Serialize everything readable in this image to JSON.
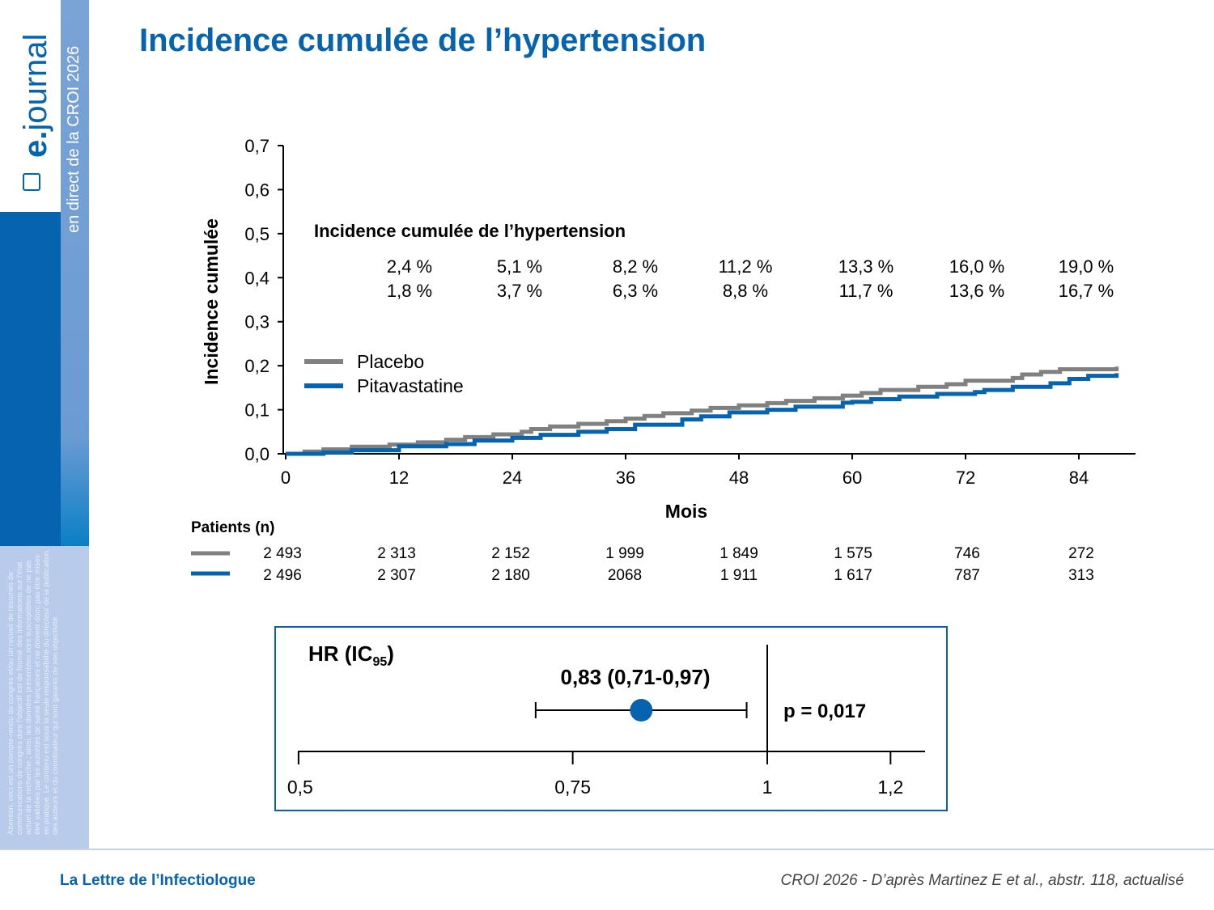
{
  "sidebar": {
    "logo_prefix": "e.",
    "logo_suffix": "journal",
    "event": "en direct de la CROI 2026",
    "disclaimer": "Attention, ceci est un compte-rendu de congrès et/ou un recueil de résumés de communications de congrès dont l'objectif est de fournir des informations sur l'état actuel de la recherche ; ainsi, les données présentées sont susceptibles de ne pas être validées par les autorités de santé françaises et ne doivent donc pas être mises en pratique. Le contenu est sous la seule responsabilité du directeur de la publication, des auteurs et du coordinateur qui sont garants de son objectivité."
  },
  "title": "Incidence cumulée de l’hypertension",
  "footer": {
    "left": "La Lettre de l’Infectiologue",
    "right": "CROI 2026 - D’après Martinez E et al., abstr. 118, actualisé"
  },
  "colors": {
    "placebo": "#808080",
    "pitavastatine": "#0563b0"
  },
  "chart_data": [
    {
      "type": "line",
      "step": true,
      "title": "Incidence cumulée de l’hypertension",
      "xlabel": "Mois",
      "ylabel": "Incidence cumulée",
      "xlim": [
        0,
        88
      ],
      "ylim": [
        0,
        0.7
      ],
      "xticks": [
        "0",
        "12",
        "24",
        "36",
        "48",
        "60",
        "72",
        "84"
      ],
      "xtick_values": [
        0,
        12,
        24,
        36,
        48,
        60,
        72,
        84
      ],
      "yticks": [
        "0,0",
        "0,1",
        "0,2",
        "0,3",
        "0,4",
        "0,5",
        "0,6",
        "0,7"
      ],
      "ytick_values": [
        0,
        0.1,
        0.2,
        0.3,
        0.4,
        0.5,
        0.6,
        0.7
      ],
      "legend_position": "middle-left",
      "series": [
        {
          "name": "Placebo",
          "color": "#808080",
          "points": [
            [
              0,
              0
            ],
            [
              2,
              0.005
            ],
            [
              4,
              0.01
            ],
            [
              7,
              0.016
            ],
            [
              11,
              0.021
            ],
            [
              14,
              0.026
            ],
            [
              17,
              0.032
            ],
            [
              19,
              0.038
            ],
            [
              22,
              0.044
            ],
            [
              25,
              0.05
            ],
            [
              26,
              0.056
            ],
            [
              28,
              0.062
            ],
            [
              31,
              0.068
            ],
            [
              34,
              0.074
            ],
            [
              36,
              0.08
            ],
            [
              38,
              0.086
            ],
            [
              40,
              0.092
            ],
            [
              43,
              0.098
            ],
            [
              45,
              0.104
            ],
            [
              48,
              0.11
            ],
            [
              51,
              0.115
            ],
            [
              53,
              0.12
            ],
            [
              56,
              0.126
            ],
            [
              59,
              0.132
            ],
            [
              61,
              0.138
            ],
            [
              63,
              0.145
            ],
            [
              67,
              0.152
            ],
            [
              70,
              0.158
            ],
            [
              72,
              0.166
            ],
            [
              77,
              0.172
            ],
            [
              78,
              0.18
            ],
            [
              80,
              0.186
            ],
            [
              82,
              0.192
            ],
            [
              88,
              0.198
            ]
          ]
        },
        {
          "name": "Pitavastatine",
          "color": "#0563b0",
          "points": [
            [
              0,
              0
            ],
            [
              4,
              0.003
            ],
            [
              7,
              0.008
            ],
            [
              12,
              0.017
            ],
            [
              17,
              0.022
            ],
            [
              20,
              0.03
            ],
            [
              24,
              0.036
            ],
            [
              27,
              0.043
            ],
            [
              31,
              0.05
            ],
            [
              34,
              0.056
            ],
            [
              37,
              0.066
            ],
            [
              42,
              0.078
            ],
            [
              44,
              0.085
            ],
            [
              47,
              0.094
            ],
            [
              51,
              0.1
            ],
            [
              54,
              0.107
            ],
            [
              59,
              0.116
            ],
            [
              60,
              0.118
            ],
            [
              62,
              0.124
            ],
            [
              65,
              0.13
            ],
            [
              69,
              0.136
            ],
            [
              73,
              0.14
            ],
            [
              74,
              0.145
            ],
            [
              77,
              0.152
            ],
            [
              81,
              0.16
            ],
            [
              83,
              0.17
            ],
            [
              85,
              0.177
            ],
            [
              88,
              0.183
            ]
          ]
        }
      ],
      "annotations": {
        "months": [
          12,
          24,
          36,
          48,
          60,
          72,
          84
        ],
        "placebo": [
          "2,4 %",
          "5,1 %",
          "8,2 %",
          "11,2 %",
          "13,3 %",
          "16,0 %",
          "19,0 %"
        ],
        "pitavastatine": [
          "1,8 %",
          "3,7 %",
          "6,3 %",
          "8,8 %",
          "11,7 %",
          "13,6 %",
          "16,7 %"
        ]
      },
      "at_risk": {
        "label": "Patients (n)",
        "placebo": [
          "2 493",
          "2 313",
          "2 152",
          "1 999",
          "1 849",
          "1 575",
          "746",
          "272"
        ],
        "pitavastatine": [
          "2 496",
          "2 307",
          "2 180",
          "2068",
          "1 911",
          "1 617",
          "787",
          "313"
        ]
      }
    },
    {
      "type": "forest",
      "scale": "log",
      "label": "HR (IC",
      "label_sub": "95",
      "label_end": ")",
      "hr": 0.83,
      "ci": [
        0.71,
        0.97
      ],
      "hr_text": "0,83 (0,71-0,97)",
      "p_text": "p = 0,017",
      "xlim": [
        0.5,
        1.25
      ],
      "xticks": [
        "0,5",
        "0,75",
        "1",
        "1,2"
      ],
      "xtick_values": [
        0.5,
        0.75,
        1,
        1.2
      ],
      "reference": 1
    }
  ]
}
